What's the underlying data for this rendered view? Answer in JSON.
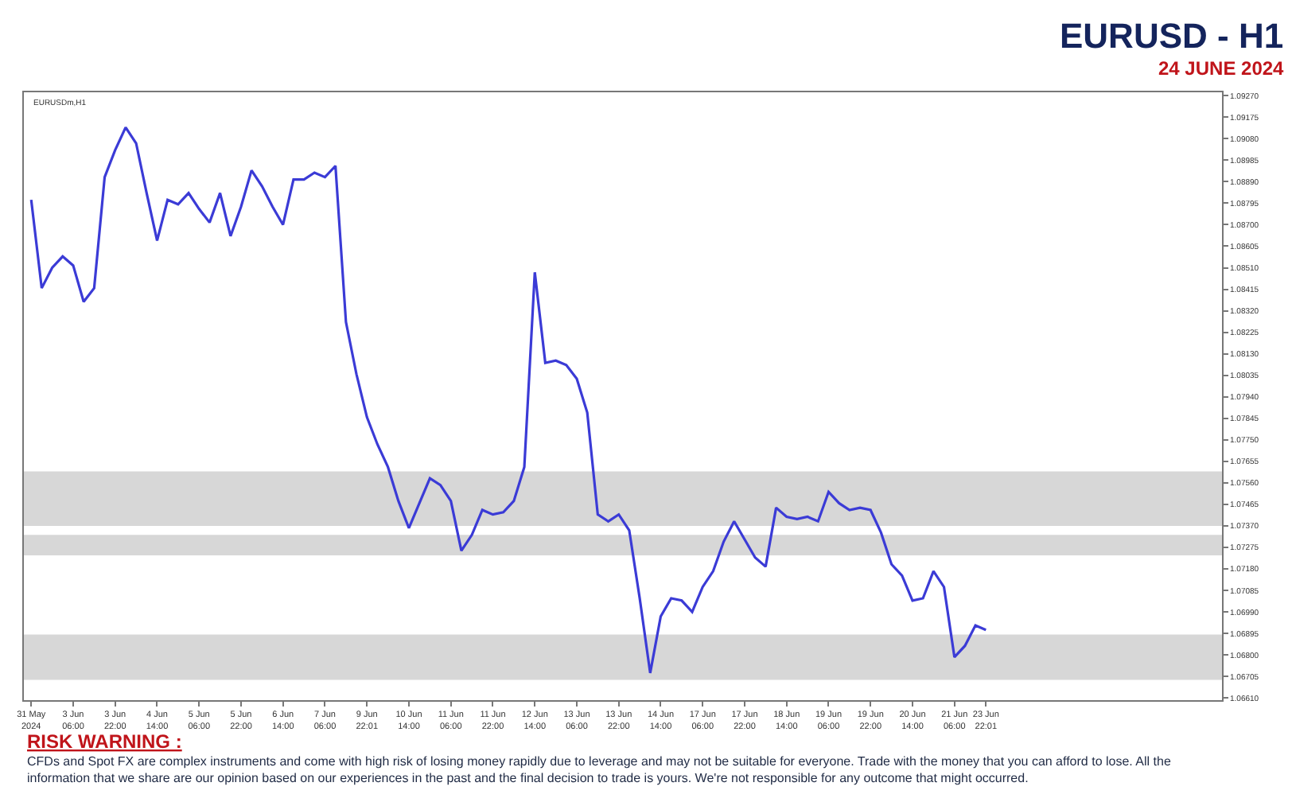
{
  "chart_data": {
    "type": "line",
    "title": "EURUSD - H1",
    "subtitle": "24 JUNE 2024",
    "annotations": [
      "EURUSDm,H1",
      "RISK WARNING :",
      "CFDs and Spot FX are complex instruments and come with high risk of losing money rapidly due to leverage and may not be suitable for everyone. Trade with the money that you can afford to lose. All the information that we share are our opinion based on our experiences in the past and the final decision to trade is yours. We're not responsible for any outcome that might occurred."
    ],
    "categories": [
      "31 May 2024",
      null,
      null,
      null,
      "3 Jun 06:00",
      null,
      null,
      null,
      "3 Jun 22:00",
      null,
      null,
      null,
      "4 Jun 14:00",
      null,
      null,
      null,
      "5 Jun 06:00",
      null,
      null,
      null,
      "5 Jun 22:00",
      null,
      null,
      null,
      "6 Jun 14:00",
      null,
      null,
      null,
      "7 Jun 06:00",
      null,
      null,
      null,
      "9 Jun 22:01",
      null,
      null,
      null,
      "10 Jun 14:00",
      null,
      null,
      null,
      "11 Jun 06:00",
      null,
      null,
      null,
      "11 Jun 22:00",
      null,
      null,
      null,
      "12 Jun 14:00",
      null,
      null,
      null,
      "13 Jun 06:00",
      null,
      null,
      null,
      "13 Jun 22:00",
      null,
      null,
      null,
      "14 Jun 14:00",
      null,
      null,
      null,
      "17 Jun 06:00",
      null,
      null,
      null,
      "17 Jun 22:00",
      null,
      null,
      null,
      "18 Jun 14:00",
      null,
      null,
      null,
      "19 Jun 06:00",
      null,
      null,
      null,
      "19 Jun 22:00",
      null,
      null,
      null,
      "20 Jun 14:00",
      null,
      null,
      null,
      "21 Jun 06:00",
      null,
      null,
      "23 Jun 22:01",
      null,
      null,
      null,
      null,
      null,
      null,
      null,
      null,
      null,
      null,
      null,
      null,
      null,
      null,
      null,
      null,
      null,
      null,
      null,
      null,
      null,
      null
    ],
    "series": [
      {
        "color": "#3b3bd6",
        "values": [
          1.0881,
          1.0842,
          1.0851,
          1.0856,
          1.0852,
          1.0836,
          1.0842,
          1.0891,
          1.0903,
          1.0913,
          1.0906,
          1.0884,
          1.0863,
          1.0881,
          1.0879,
          1.0884,
          1.0877,
          1.0871,
          1.0884,
          1.0865,
          1.0878,
          1.0894,
          1.0887,
          1.0878,
          1.087,
          1.089,
          1.089,
          1.0893,
          1.0891,
          1.0896,
          1.0827,
          1.0804,
          1.0785,
          1.0773,
          1.0763,
          1.0748,
          1.0736,
          1.0747,
          1.0758,
          1.0755,
          1.0748,
          1.0726,
          1.0733,
          1.0744,
          1.0742,
          1.0743,
          1.0748,
          1.0763,
          1.0849,
          1.0809,
          1.081,
          1.0808,
          1.0802,
          1.0787,
          1.0742,
          1.0739,
          1.0742,
          1.0735,
          1.0705,
          1.0672,
          1.0697,
          1.0705,
          1.0704,
          1.0699,
          1.071,
          1.0717,
          1.073,
          1.0739,
          1.0731,
          1.0723,
          1.0719,
          1.0745,
          1.0741,
          1.074,
          1.0741,
          1.0739,
          1.0752,
          1.0747,
          1.0744,
          1.0745,
          1.0744,
          1.0734,
          1.072,
          1.0715,
          1.0704,
          1.0705,
          1.0717,
          1.071,
          1.0679,
          1.0684,
          1.0693,
          1.0691,
          null,
          null,
          null,
          null,
          null,
          null,
          null,
          null,
          null,
          null,
          null,
          null,
          null,
          null,
          null,
          null,
          null,
          null,
          null,
          null,
          null,
          null
        ]
      }
    ],
    "ylim": [
      1.066,
      1.09285
    ],
    "yticks": [
      {
        "value": 1.0661,
        "label": "1.06610"
      },
      {
        "value": 1.06705,
        "label": "1.06705"
      },
      {
        "value": 1.068,
        "label": "1.06800"
      },
      {
        "value": 1.06895,
        "label": "1.06895"
      },
      {
        "value": 1.0699,
        "label": "1.06990"
      },
      {
        "value": 1.07085,
        "label": "1.07085"
      },
      {
        "value": 1.0718,
        "label": "1.07180"
      },
      {
        "value": 1.07275,
        "label": "1.07275"
      },
      {
        "value": 1.0737,
        "label": "1.07370"
      },
      {
        "value": 1.07465,
        "label": "1.07465"
      },
      {
        "value": 1.0756,
        "label": "1.07560"
      },
      {
        "value": 1.07655,
        "label": "1.07655"
      },
      {
        "value": 1.0775,
        "label": "1.07750"
      },
      {
        "value": 1.07845,
        "label": "1.07845"
      },
      {
        "value": 1.0794,
        "label": "1.07940"
      },
      {
        "value": 1.08035,
        "label": "1.08035"
      },
      {
        "value": 1.0813,
        "label": "1.08130"
      },
      {
        "value": 1.08225,
        "label": "1.08225"
      },
      {
        "value": 1.0832,
        "label": "1.08320"
      },
      {
        "value": 1.08415,
        "label": "1.08415"
      },
      {
        "value": 1.0851,
        "label": "1.08510"
      },
      {
        "value": 1.08605,
        "label": "1.08605"
      },
      {
        "value": 1.087,
        "label": "1.08700"
      },
      {
        "value": 1.08795,
        "label": "1.08795"
      },
      {
        "value": 1.0889,
        "label": "1.08890"
      },
      {
        "value": 1.08985,
        "label": "1.08985"
      },
      {
        "value": 1.0908,
        "label": "1.09080"
      },
      {
        "value": 1.09175,
        "label": "1.09175"
      },
      {
        "value": 1.0927,
        "label": "1.09270"
      }
    ],
    "bands": [
      {
        "axis": "y",
        "from": 1.0737,
        "to": 1.0761,
        "color": "#d3d3d3"
      },
      {
        "axis": "y",
        "from": 1.0724,
        "to": 1.0733,
        "color": "#d3d3d3"
      },
      {
        "axis": "y",
        "from": 1.0669,
        "to": 1.0689,
        "color": "#d3d3d3"
      }
    ],
    "grid": false,
    "marker": "none",
    "line_style": "solid"
  }
}
